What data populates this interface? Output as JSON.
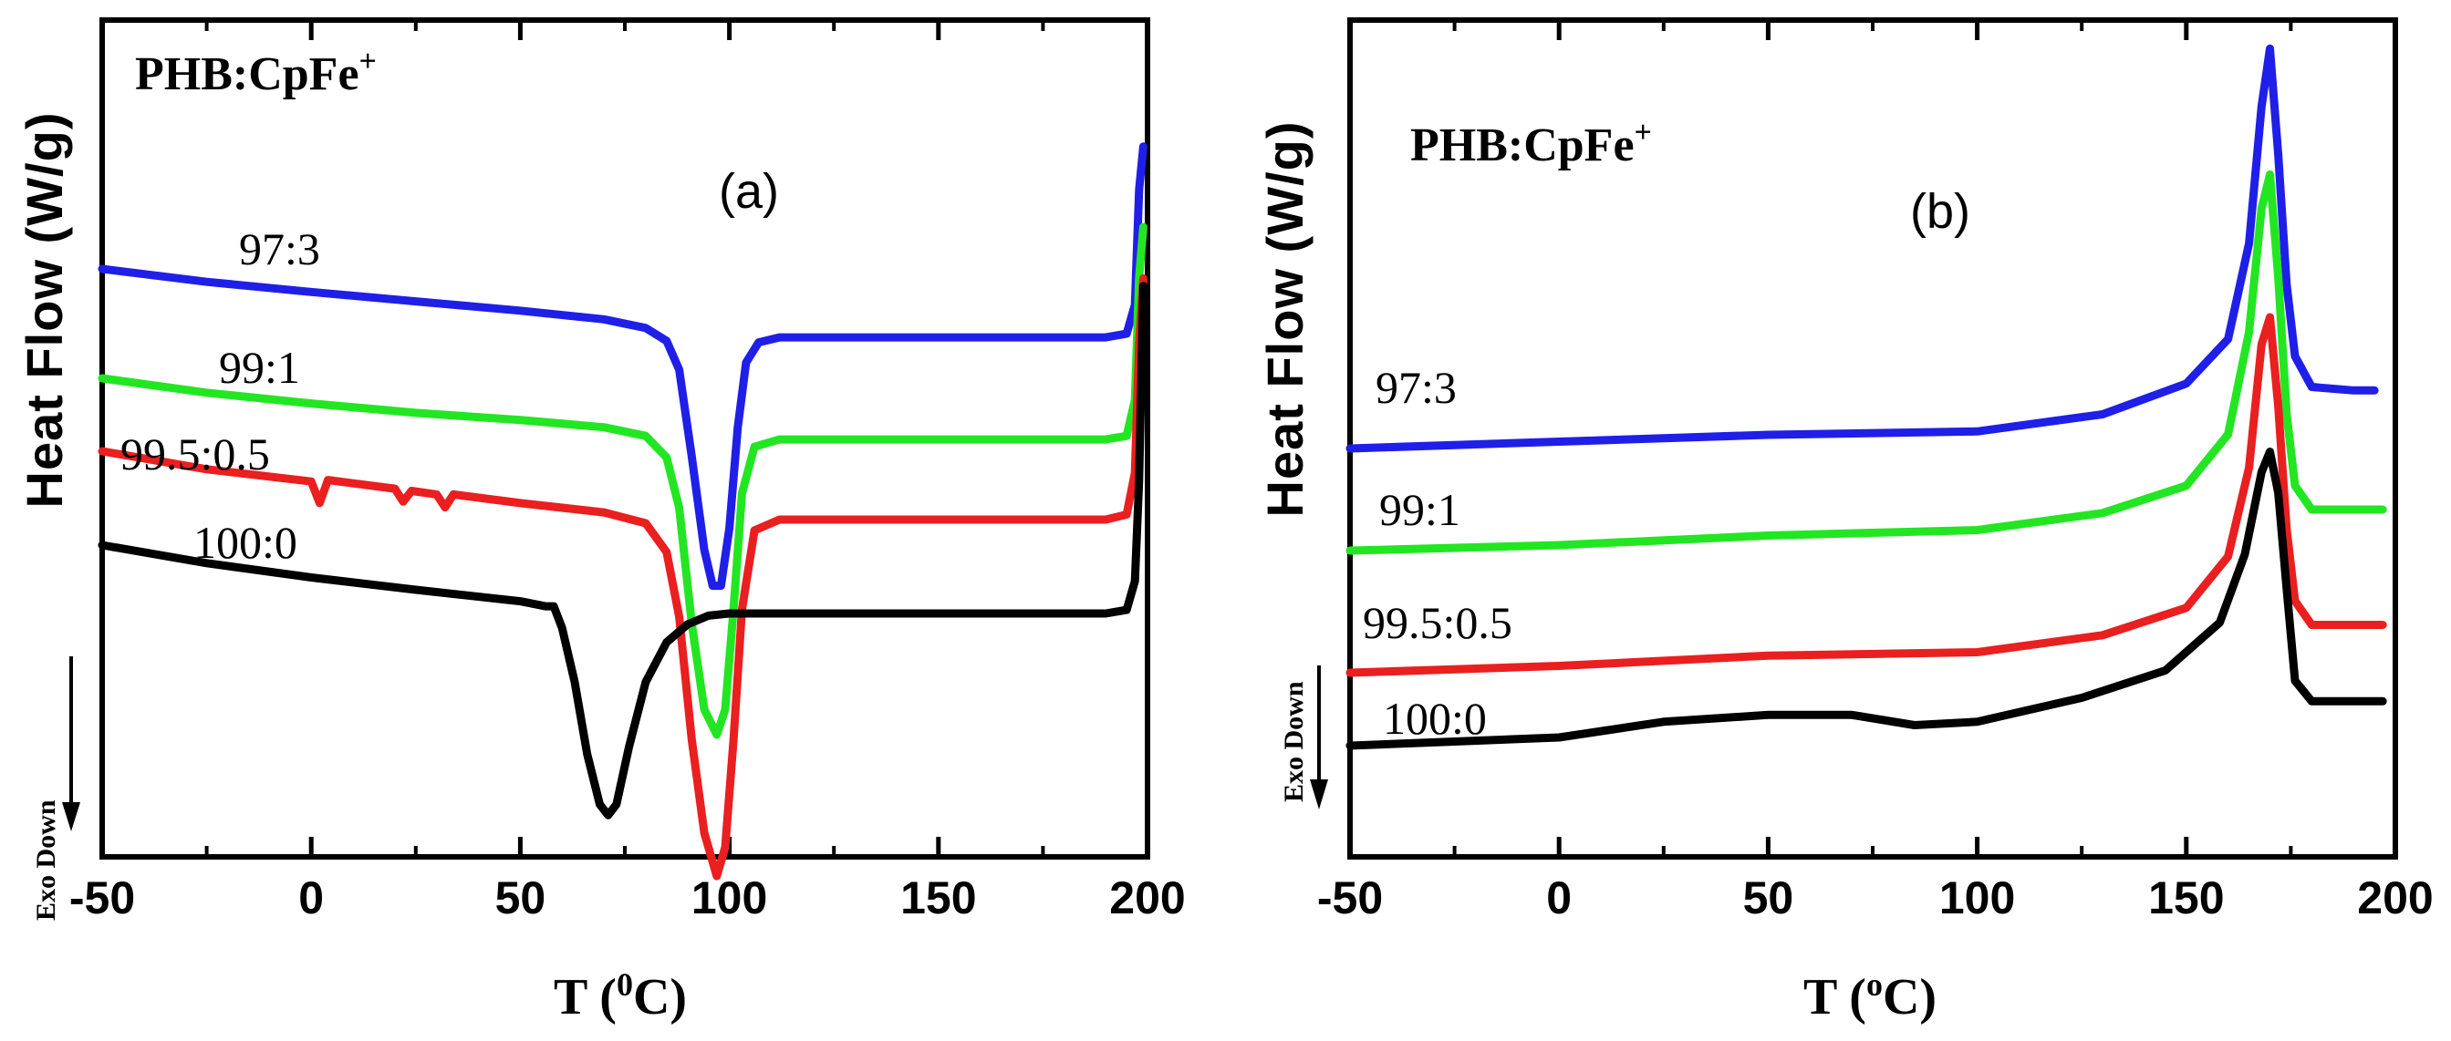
{
  "chart_data": [
    {
      "type": "line",
      "panel": "(a)",
      "sample_title": "PHB:CpFe+",
      "title_main": "PHB:CpFe",
      "title_sup": "+",
      "xlabel_main": "T (",
      "xlabel_sup": "0",
      "xlabel_end": "C)",
      "ylabel": "Heat Flow (W/g)",
      "exo_label": "Exo Down",
      "xlim": [
        -50,
        200
      ],
      "xticks": [
        -50,
        0,
        50,
        100,
        150,
        200
      ],
      "xtick_labels": [
        "-50",
        "0",
        "50",
        "100",
        "150",
        "200"
      ],
      "series": [
        {
          "name": "97:3",
          "color": "#1f1fe8",
          "points": [
            [
              -50,
              0.0
            ],
            [
              -25,
              -0.18
            ],
            [
              0,
              -0.32
            ],
            [
              25,
              -0.45
            ],
            [
              50,
              -0.58
            ],
            [
              70,
              -0.7
            ],
            [
              80,
              -0.82
            ],
            [
              85,
              -1.0
            ],
            [
              88,
              -1.4
            ],
            [
              91,
              -2.6
            ],
            [
              94,
              -3.9
            ],
            [
              96,
              -4.4
            ],
            [
              98,
              -4.4
            ],
            [
              100,
              -3.6
            ],
            [
              102,
              -2.2
            ],
            [
              104,
              -1.3
            ],
            [
              107,
              -1.02
            ],
            [
              112,
              -0.95
            ],
            [
              150,
              -0.95
            ],
            [
              190,
              -0.95
            ],
            [
              195,
              -0.9
            ],
            [
              197,
              -0.5
            ],
            [
              198,
              1.1
            ],
            [
              199,
              1.7
            ]
          ]
        },
        {
          "name": "99:1",
          "color": "#22e622",
          "points": [
            [
              -50,
              0.0
            ],
            [
              -25,
              -0.2
            ],
            [
              0,
              -0.35
            ],
            [
              25,
              -0.48
            ],
            [
              50,
              -0.58
            ],
            [
              70,
              -0.68
            ],
            [
              80,
              -0.8
            ],
            [
              85,
              -1.1
            ],
            [
              88,
              -1.8
            ],
            [
              91,
              -3.4
            ],
            [
              94,
              -4.6
            ],
            [
              97,
              -4.95
            ],
            [
              99,
              -4.6
            ],
            [
              101,
              -3.2
            ],
            [
              103,
              -1.6
            ],
            [
              106,
              -0.95
            ],
            [
              112,
              -0.85
            ],
            [
              150,
              -0.85
            ],
            [
              190,
              -0.85
            ],
            [
              195,
              -0.8
            ],
            [
              197,
              -0.3
            ],
            [
              198,
              1.4
            ],
            [
              199,
              2.1
            ]
          ]
        },
        {
          "name": "99.5:0.5",
          "color": "#ea1f1f",
          "points": [
            [
              -50,
              0.0
            ],
            [
              -25,
              -0.25
            ],
            [
              0,
              -0.42
            ],
            [
              2,
              -0.72
            ],
            [
              4,
              -0.4
            ],
            [
              20,
              -0.52
            ],
            [
              22,
              -0.7
            ],
            [
              24,
              -0.55
            ],
            [
              30,
              -0.6
            ],
            [
              32,
              -0.78
            ],
            [
              34,
              -0.6
            ],
            [
              50,
              -0.72
            ],
            [
              70,
              -0.85
            ],
            [
              80,
              -1.0
            ],
            [
              85,
              -1.4
            ],
            [
              88,
              -2.3
            ],
            [
              91,
              -4.0
            ],
            [
              94,
              -5.3
            ],
            [
              97,
              -5.9
            ],
            [
              99,
              -5.5
            ],
            [
              101,
              -4.0
            ],
            [
              103,
              -2.2
            ],
            [
              106,
              -1.1
            ],
            [
              112,
              -0.95
            ],
            [
              150,
              -0.95
            ],
            [
              190,
              -0.95
            ],
            [
              195,
              -0.88
            ],
            [
              197,
              -0.3
            ],
            [
              198,
              1.5
            ],
            [
              199,
              2.4
            ]
          ]
        },
        {
          "name": "100:0",
          "color": "#000000",
          "points": [
            [
              -50,
              0.0
            ],
            [
              -25,
              -0.25
            ],
            [
              0,
              -0.45
            ],
            [
              25,
              -0.62
            ],
            [
              50,
              -0.78
            ],
            [
              56,
              -0.85
            ],
            [
              58,
              -0.85
            ],
            [
              60,
              -1.15
            ],
            [
              63,
              -1.9
            ],
            [
              66,
              -2.9
            ],
            [
              69,
              -3.6
            ],
            [
              71,
              -3.75
            ],
            [
              73,
              -3.6
            ],
            [
              76,
              -2.8
            ],
            [
              80,
              -1.9
            ],
            [
              85,
              -1.35
            ],
            [
              90,
              -1.1
            ],
            [
              95,
              -0.98
            ],
            [
              100,
              -0.95
            ],
            [
              150,
              -0.95
            ],
            [
              190,
              -0.95
            ],
            [
              195,
              -0.9
            ],
            [
              197,
              -0.5
            ],
            [
              198,
              0.9
            ],
            [
              199,
              3.6
            ]
          ]
        }
      ]
    },
    {
      "type": "line",
      "panel": "(b)",
      "sample_title": "PHB:CpFe+",
      "title_main": "PHB:CpFe",
      "title_sup": "+",
      "xlabel_main": "T (",
      "xlabel_sup": "o",
      "xlabel_end": "C)",
      "ylabel": "Heat Flow (W/g)",
      "exo_label": "Exo Down",
      "xlim": [
        -50,
        200
      ],
      "xticks": [
        -50,
        0,
        50,
        100,
        150,
        200
      ],
      "xtick_labels": [
        "-50",
        "0",
        "50",
        "100",
        "150",
        "200"
      ],
      "series": [
        {
          "name": "97:3",
          "color": "#1f1fe8",
          "points": [
            [
              -50,
              0.0
            ],
            [
              0,
              0.1
            ],
            [
              50,
              0.2
            ],
            [
              100,
              0.25
            ],
            [
              130,
              0.5
            ],
            [
              150,
              0.95
            ],
            [
              160,
              1.6
            ],
            [
              165,
              3.0
            ],
            [
              168,
              5.0
            ],
            [
              170,
              5.85
            ],
            [
              172,
              4.3
            ],
            [
              174,
              2.4
            ],
            [
              176,
              1.35
            ],
            [
              180,
              0.9
            ],
            [
              190,
              0.85
            ],
            [
              195,
              0.85
            ]
          ]
        },
        {
          "name": "99:1",
          "color": "#22e622",
          "points": [
            [
              -50,
              0.0
            ],
            [
              0,
              0.08
            ],
            [
              50,
              0.22
            ],
            [
              100,
              0.3
            ],
            [
              130,
              0.55
            ],
            [
              150,
              0.95
            ],
            [
              160,
              1.7
            ],
            [
              165,
              3.2
            ],
            [
              168,
              5.0
            ],
            [
              170,
              5.5
            ],
            [
              172,
              4.0
            ],
            [
              174,
              2.0
            ],
            [
              176,
              0.95
            ],
            [
              180,
              0.6
            ],
            [
              190,
              0.6
            ],
            [
              197,
              0.6
            ]
          ]
        },
        {
          "name": "99.5:0.5",
          "color": "#ea1f1f",
          "points": [
            [
              -50,
              0.0
            ],
            [
              0,
              0.1
            ],
            [
              50,
              0.25
            ],
            [
              100,
              0.3
            ],
            [
              130,
              0.55
            ],
            [
              150,
              0.95
            ],
            [
              160,
              1.7
            ],
            [
              165,
              3.0
            ],
            [
              168,
              4.8
            ],
            [
              170,
              5.2
            ],
            [
              172,
              3.9
            ],
            [
              174,
              2.1
            ],
            [
              176,
              1.05
            ],
            [
              180,
              0.7
            ],
            [
              190,
              0.7
            ],
            [
              197,
              0.7
            ]
          ]
        },
        {
          "name": "100:0",
          "color": "#000000",
          "points": [
            [
              -50,
              0.0
            ],
            [
              0,
              0.12
            ],
            [
              25,
              0.35
            ],
            [
              50,
              0.45
            ],
            [
              70,
              0.45
            ],
            [
              85,
              0.3
            ],
            [
              100,
              0.35
            ],
            [
              125,
              0.7
            ],
            [
              145,
              1.1
            ],
            [
              158,
              1.8
            ],
            [
              164,
              2.8
            ],
            [
              168,
              4.0
            ],
            [
              170,
              4.3
            ],
            [
              172,
              3.7
            ],
            [
              174,
              2.3
            ],
            [
              176,
              0.95
            ],
            [
              180,
              0.65
            ],
            [
              190,
              0.65
            ],
            [
              197,
              0.65
            ]
          ]
        }
      ]
    }
  ]
}
